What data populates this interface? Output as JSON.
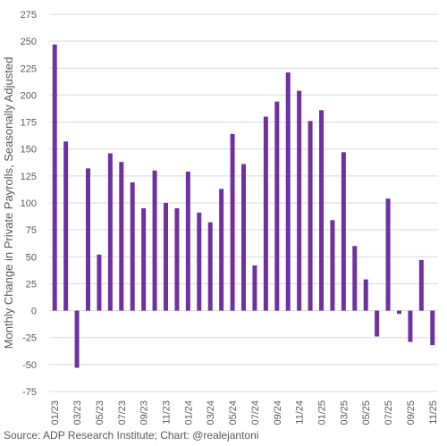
{
  "chart_data": {
    "type": "bar",
    "y_label": "Monthly Change in Private Payrolls, Seasonally Adjusted",
    "source": "Source: ADP Research Institute; Chart: @realejantoni",
    "categories": [
      "01/23",
      null,
      "03/23",
      null,
      "05/23",
      null,
      "07/23",
      null,
      "09/23",
      null,
      "11/23",
      null,
      "01/24",
      null,
      "03/24",
      null,
      "05/24",
      null,
      "07/24",
      null,
      "09/24",
      null,
      "11/24",
      null,
      "01/25",
      null,
      "03/25",
      null,
      "05/25",
      null,
      "07/25",
      null,
      "09/25",
      null,
      "11/25"
    ],
    "values": [
      247,
      157,
      -53,
      132,
      52,
      146,
      138,
      119,
      95,
      130,
      100,
      95,
      129,
      91,
      82,
      113,
      164,
      136,
      42,
      180,
      194,
      221,
      204,
      176,
      186,
      84,
      147,
      60,
      29,
      -24,
      104,
      -3,
      -29,
      47,
      -32
    ],
    "color": "#7030a0",
    "ylim": [
      -75,
      275
    ],
    "yticks": [
      -75,
      -50,
      -25,
      0,
      25,
      50,
      75,
      100,
      125,
      150,
      175,
      200,
      225,
      250,
      275
    ],
    "grid": true
  }
}
